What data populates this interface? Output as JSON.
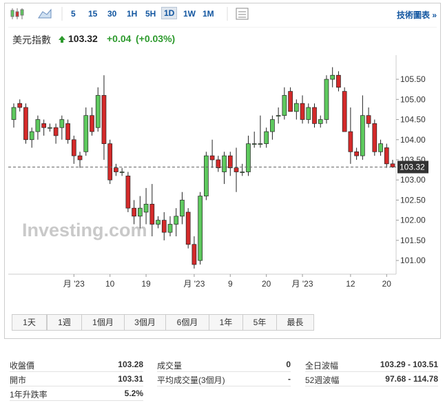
{
  "toolbar": {
    "intervals": [
      "5",
      "15",
      "30",
      "1H",
      "5H",
      "1D",
      "1W",
      "1M"
    ],
    "link": "技術圖表 »"
  },
  "header": {
    "name": "美元指數",
    "price": "103.32",
    "change": "+0.04",
    "change_pct": "(+0.03%)"
  },
  "chart_data": {
    "type": "candlestick",
    "watermark": "Investing.com",
    "categories": [
      null,
      null,
      null,
      null,
      null,
      null,
      null,
      null,
      null,
      null,
      "月 '23",
      null,
      null,
      null,
      null,
      null,
      "10",
      null,
      null,
      null,
      null,
      null,
      "19",
      null,
      null,
      null,
      null,
      null,
      null,
      null,
      "月 '23",
      null,
      null,
      null,
      null,
      null,
      "9",
      null,
      null,
      null,
      null,
      null,
      "20",
      null,
      null,
      null,
      null,
      null,
      "月 '23",
      null,
      null,
      null,
      null,
      null,
      null,
      null,
      "12",
      null,
      null,
      null,
      null,
      null,
      "20",
      null
    ],
    "open": [
      104.5,
      104.9,
      104.8,
      104.0,
      104.2,
      104.4,
      104.3,
      104.3,
      104.3,
      104.4,
      104.0,
      103.6,
      103.7,
      104.6,
      104.3,
      105.1,
      103.9,
      103.3,
      103.2,
      103.1,
      102.3,
      102.1,
      102.2,
      102.4,
      101.9,
      102.0,
      101.7,
      101.9,
      102.1,
      102.2,
      101.4,
      101.0,
      102.6,
      103.6,
      103.5,
      103.2,
      103.6,
      103.3,
      103.2,
      103.2,
      103.9,
      103.9,
      103.9,
      104.2,
      104.6,
      104.6,
      105.2,
      104.7,
      104.9,
      104.5,
      104.8,
      104.4,
      104.5,
      105.5,
      105.6,
      105.2,
      104.2,
      103.7,
      103.6,
      104.6,
      104.4,
      103.7,
      103.8,
      103.4
    ],
    "high": [
      104.9,
      105.0,
      104.9,
      104.3,
      104.6,
      104.5,
      104.4,
      104.4,
      104.6,
      104.5,
      104.1,
      103.7,
      104.8,
      104.8,
      105.3,
      105.6,
      104.0,
      103.4,
      103.3,
      103.2,
      102.5,
      102.6,
      102.8,
      102.9,
      102.1,
      102.2,
      102.1,
      102.3,
      102.7,
      102.3,
      101.6,
      102.7,
      103.7,
      104.0,
      103.6,
      103.7,
      103.7,
      103.8,
      103.4,
      104.1,
      104.2,
      104.6,
      104.3,
      104.6,
      104.8,
      105.3,
      105.3,
      105.0,
      105.1,
      104.9,
      104.9,
      104.6,
      105.6,
      105.8,
      105.7,
      105.3,
      104.8,
      103.8,
      105.1,
      104.8,
      104.5,
      104.0,
      103.9,
      103.5
    ],
    "low": [
      104.3,
      104.7,
      103.9,
      103.8,
      104.0,
      104.1,
      104.2,
      103.9,
      104.0,
      103.9,
      103.4,
      103.3,
      103.6,
      104.1,
      104.2,
      103.5,
      102.9,
      103.1,
      103.1,
      102.2,
      101.9,
      101.8,
      101.9,
      101.6,
      101.8,
      101.5,
      101.6,
      101.6,
      101.9,
      101.3,
      100.8,
      100.9,
      102.5,
      103.3,
      103.2,
      102.9,
      103.1,
      102.7,
      103.1,
      103.1,
      103.8,
      103.8,
      103.8,
      104.0,
      104.4,
      104.5,
      104.7,
      104.5,
      104.4,
      104.4,
      104.3,
      104.3,
      104.4,
      105.3,
      105.2,
      104.2,
      103.4,
      103.5,
      103.5,
      104.3,
      103.6,
      103.6,
      103.3,
      103.3
    ],
    "close": [
      104.8,
      104.8,
      104.0,
      104.2,
      104.5,
      104.3,
      104.3,
      104.1,
      104.5,
      104.0,
      103.6,
      103.5,
      104.6,
      104.2,
      105.1,
      103.9,
      103.0,
      103.2,
      103.2,
      102.3,
      102.1,
      102.3,
      102.4,
      101.9,
      102.0,
      101.7,
      101.9,
      102.1,
      102.5,
      101.4,
      100.9,
      102.6,
      103.6,
      103.5,
      103.3,
      103.6,
      103.3,
      103.2,
      103.2,
      103.9,
      103.9,
      103.9,
      104.2,
      104.5,
      104.6,
      105.1,
      104.7,
      104.9,
      104.5,
      104.8,
      104.4,
      104.5,
      105.5,
      105.6,
      105.3,
      104.2,
      103.7,
      103.6,
      104.6,
      104.4,
      103.7,
      103.9,
      103.4,
      103.32
    ],
    "up_color": "#5ec95e",
    "down_color": "#d42a2a",
    "ylim": [
      100.66,
      106.1
    ],
    "yticks": [
      {
        "value": 101,
        "label": "101.00"
      },
      {
        "value": 101.5,
        "label": "101.50"
      },
      {
        "value": 102,
        "label": "102.00"
      },
      {
        "value": 102.5,
        "label": "102.50"
      },
      {
        "value": 103,
        "label": "103.00"
      },
      {
        "value": 103.5,
        "label": "103.50"
      },
      {
        "value": 104,
        "label": "104.00"
      },
      {
        "value": 104.5,
        "label": "104.50"
      },
      {
        "value": 105,
        "label": "105.00"
      },
      {
        "value": 105.5,
        "label": "105.50"
      }
    ],
    "last_price": {
      "value": 103.32,
      "label": "103.32"
    }
  },
  "periods": [
    "1天",
    "1週",
    "1個月",
    "3個月",
    "6個月",
    "1年",
    "5年",
    "最長"
  ],
  "stats": [
    [
      "收盤價",
      "103.28"
    ],
    [
      "開市",
      "103.31"
    ],
    [
      "1年升跌率",
      "5.2%"
    ],
    [
      "成交量",
      "0"
    ],
    [
      "平均成交量(3個月)",
      "-"
    ],
    [
      "全日波幅",
      "103.29 - 103.51"
    ],
    [
      "52週波幅",
      "97.68 - 114.78"
    ]
  ]
}
